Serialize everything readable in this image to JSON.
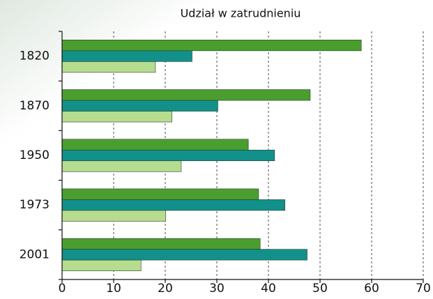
{
  "chart_data": {
    "type": "hbar",
    "title": "Udział w zatrudnieniu",
    "categories": [
      "1820",
      "1870",
      "1950",
      "1973",
      "2001"
    ],
    "series": [
      {
        "color": "#4a9e2e",
        "values": [
          58,
          48.1,
          36.1,
          38.1,
          38.4
        ]
      },
      {
        "color": "#12908a",
        "values": [
          25.2,
          30.2,
          41.2,
          43.2,
          47.5
        ]
      },
      {
        "color": "#b6dc8f",
        "values": [
          18.1,
          21.3,
          23.1,
          20.1,
          15.3
        ]
      }
    ],
    "xlim": [
      0,
      70
    ],
    "xticks": [
      0,
      10,
      20,
      30,
      40,
      50,
      60,
      70
    ],
    "grid": true
  }
}
